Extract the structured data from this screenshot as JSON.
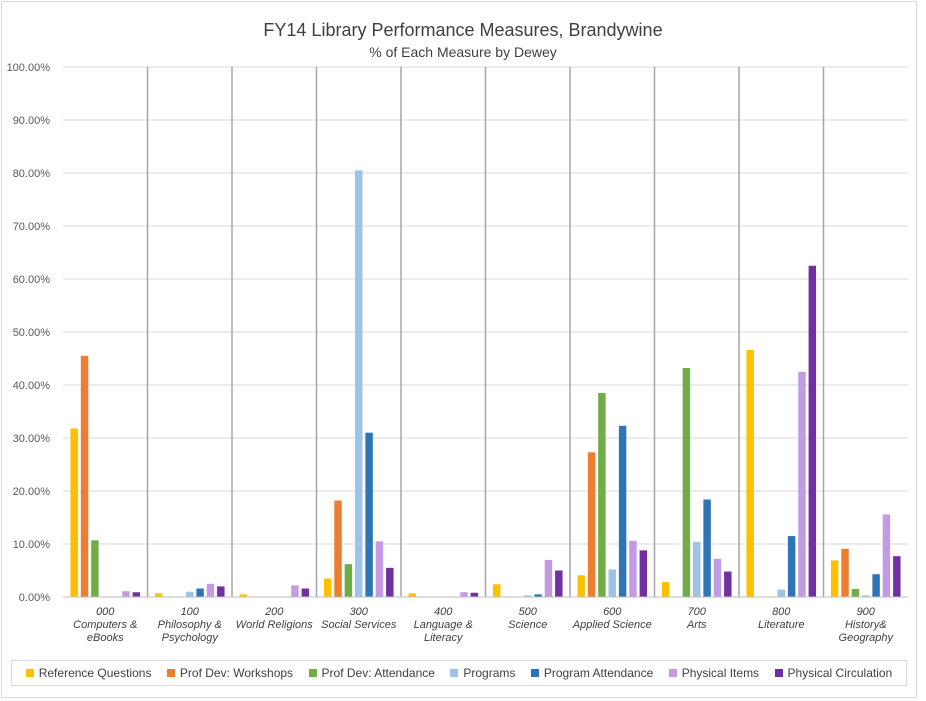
{
  "chart_data": {
    "type": "bar",
    "title": "FY14 Library Performance Measures, Brandywine",
    "subtitle": "% of Each Measure by Dewey",
    "xlabel": "",
    "ylabel": "",
    "ylim": [
      0,
      1
    ],
    "yticks": [
      "0.00%",
      "10.00%",
      "20.00%",
      "30.00%",
      "40.00%",
      "50.00%",
      "60.00%",
      "70.00%",
      "80.00%",
      "90.00%",
      "100.00%"
    ],
    "grid": true,
    "legend_position": "bottom",
    "categories": [
      [
        "000",
        "Computers &",
        "eBooks"
      ],
      [
        "100",
        "Philosophy &",
        "Psychology"
      ],
      [
        "200",
        "World Religions"
      ],
      [
        "300",
        "Social Services"
      ],
      [
        "400",
        "Language &",
        "Literacy"
      ],
      [
        "500",
        "Science"
      ],
      [
        "600",
        "Applied Science"
      ],
      [
        "700",
        "Arts"
      ],
      [
        "800",
        "Literature"
      ],
      [
        "900",
        "History&",
        "Geography"
      ]
    ],
    "series": [
      {
        "name": "Reference Questions",
        "color": "#ffc000",
        "values": [
          0.318,
          0.007,
          0.005,
          0.035,
          0.007,
          0.024,
          0.041,
          0.028,
          0.466,
          0.069
        ]
      },
      {
        "name": "Prof Dev: Workshops",
        "color": "#ed7d31",
        "values": [
          0.455,
          0.0,
          0.0,
          0.182,
          0.0,
          0.0,
          0.273,
          0.0,
          0.0,
          0.091
        ]
      },
      {
        "name": "Prof Dev: Attendance",
        "color": "#70ad47",
        "values": [
          0.107,
          0.0,
          0.0,
          0.062,
          0.0,
          0.0,
          0.385,
          0.432,
          0.0,
          0.015
        ]
      },
      {
        "name": "Programs",
        "color": "#9dc3e6",
        "values": [
          0.0,
          0.01,
          0.0,
          0.805,
          0.0,
          0.003,
          0.052,
          0.104,
          0.014,
          0.003
        ]
      },
      {
        "name": "Program Attendance",
        "color": "#2e75b6",
        "values": [
          0.0,
          0.016,
          0.0,
          0.31,
          0.0,
          0.005,
          0.323,
          0.184,
          0.115,
          0.043
        ]
      },
      {
        "name": "Physical Items",
        "color": "#c39be5",
        "values": [
          0.011,
          0.025,
          0.022,
          0.105,
          0.009,
          0.07,
          0.106,
          0.072,
          0.425,
          0.156
        ]
      },
      {
        "name": "Physical Circulation",
        "color": "#7030a0",
        "values": [
          0.009,
          0.02,
          0.016,
          0.055,
          0.008,
          0.05,
          0.088,
          0.048,
          0.625,
          0.077
        ]
      }
    ]
  }
}
